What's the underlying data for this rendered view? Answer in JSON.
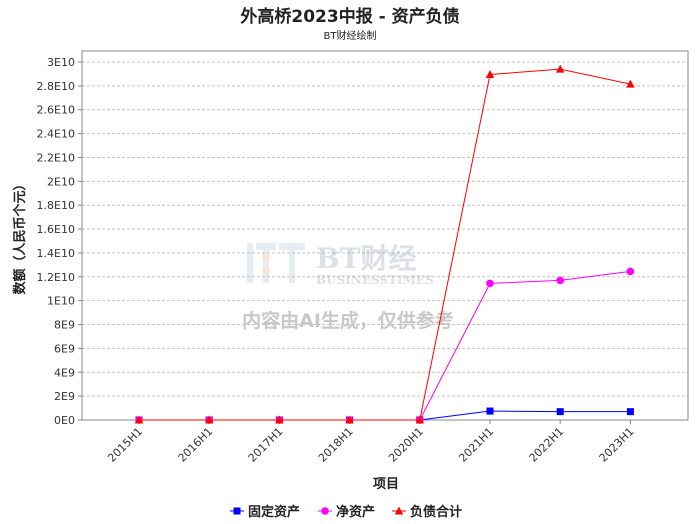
{
  "chart_data": {
    "type": "line",
    "title": "外高桥2023中报 - 资产负债",
    "subtitle": "BT财经绘制",
    "xlabel": "项目",
    "ylabel": "数额（人民币个元）",
    "categories": [
      "2015H1",
      "2016H1",
      "2017H1",
      "2018H1",
      "2020H1",
      "2021H1",
      "2022H1",
      "2023H1"
    ],
    "y_ticks": [
      "0E0",
      "2E9",
      "4E9",
      "6E9",
      "8E9",
      "1E10",
      "1.2E10",
      "1.4E10",
      "1.6E10",
      "1.8E10",
      "2E10",
      "2.2E10",
      "2.4E10",
      "2.6E10",
      "2.8E10",
      "3E10"
    ],
    "ylim": [
      0,
      30000000000
    ],
    "grid": true,
    "legend_position": "bottom",
    "series": [
      {
        "name": "固定资产",
        "color": "#0000ff",
        "marker": "square",
        "values": [
          0,
          0,
          0,
          0,
          0,
          750000000,
          700000000,
          700000000
        ]
      },
      {
        "name": "净资产",
        "color": "#ff00ff",
        "marker": "circle",
        "values": [
          0,
          0,
          0,
          0,
          0,
          11450000000,
          11700000000,
          12450000000
        ]
      },
      {
        "name": "负债合计",
        "color": "#ff0000",
        "marker": "triangle",
        "values": [
          0,
          0,
          0,
          0,
          0,
          28950000000,
          29400000000,
          28150000000
        ]
      }
    ]
  },
  "watermark": {
    "brand": "BT财经",
    "brand_en": "BUSINESSTIMES",
    "notice": "内容由AI生成，仅供参考"
  }
}
